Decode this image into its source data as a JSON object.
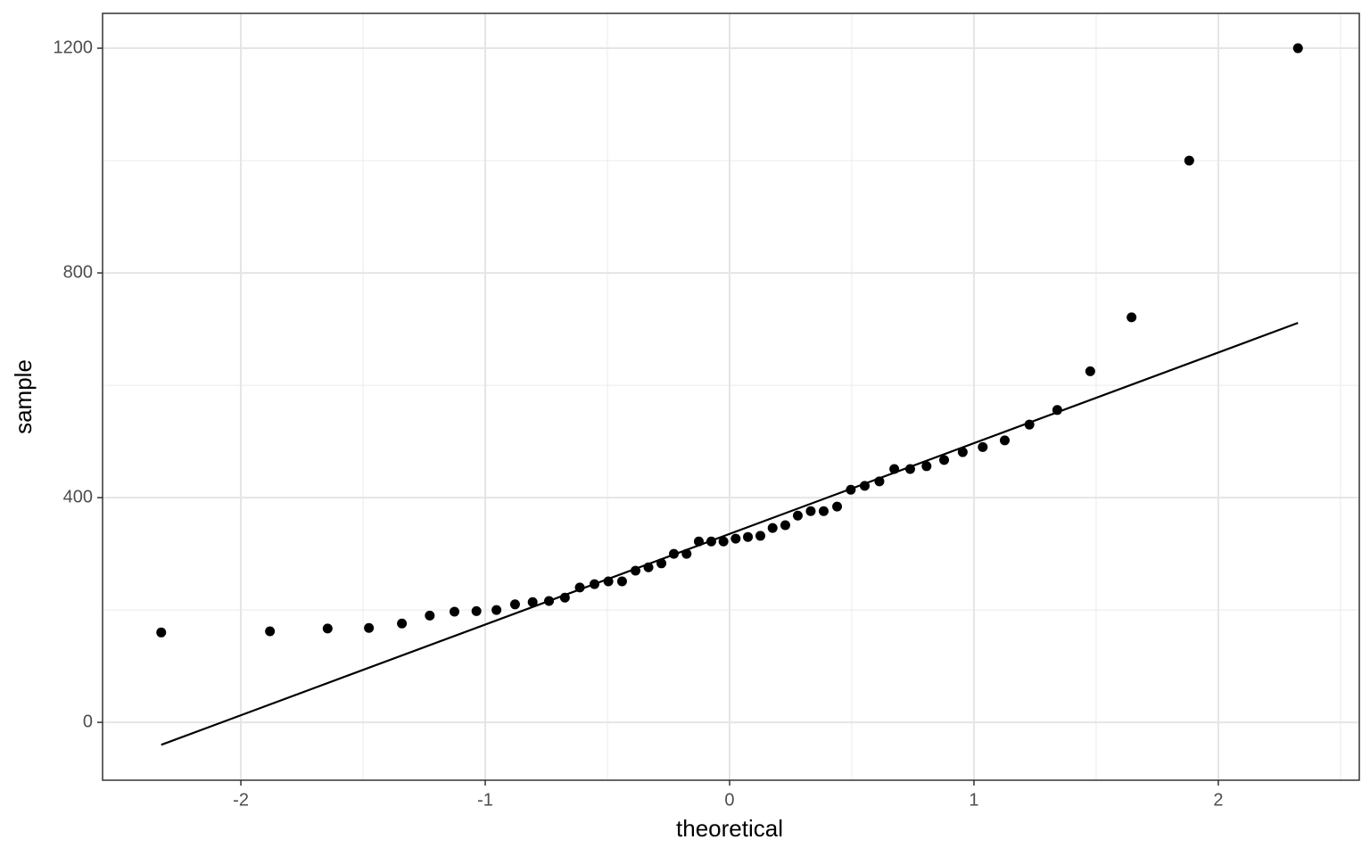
{
  "chart_data": {
    "type": "scatter",
    "x_label": "theoretical",
    "y_label": "sample",
    "x": [
      -2.326,
      -1.881,
      -1.645,
      -1.476,
      -1.341,
      -1.227,
      -1.126,
      -1.036,
      -0.954,
      -0.878,
      -0.806,
      -0.739,
      -0.674,
      -0.613,
      -0.553,
      -0.496,
      -0.44,
      -0.385,
      -0.332,
      -0.279,
      -0.228,
      -0.176,
      -0.126,
      -0.075,
      -0.025,
      0.025,
      0.075,
      0.126,
      0.176,
      0.228,
      0.279,
      0.332,
      0.385,
      0.44,
      0.496,
      0.553,
      0.613,
      0.674,
      0.739,
      0.806,
      0.878,
      0.954,
      1.036,
      1.126,
      1.227,
      1.341,
      1.476,
      1.645,
      1.881,
      2.326
    ],
    "series": [
      {
        "color": "#000000",
        "values": [
          160,
          162,
          167,
          168,
          176,
          190,
          197,
          198,
          200,
          210,
          214,
          216,
          222,
          240,
          246,
          251,
          251,
          270,
          276,
          283,
          300,
          300,
          322,
          322,
          322,
          327,
          330,
          332,
          346,
          351,
          368,
          376,
          376,
          384,
          414,
          421,
          429,
          451,
          451,
          456,
          467,
          481,
          490,
          502,
          530,
          556,
          625,
          721,
          1000,
          1200
        ]
      }
    ],
    "reference_line": {
      "color": "#000000",
      "x": [
        -2.326,
        2.326
      ],
      "y": [
        -40,
        711
      ]
    },
    "xlim": [
      -2.566,
      2.577
    ],
    "ylim": [
      -103,
      1262
    ],
    "xticks": [
      -2,
      -1,
      0,
      1,
      2
    ],
    "yticks": [
      0,
      400,
      800,
      1200
    ],
    "minor_xticks": [
      -1.5,
      -0.5,
      0.5,
      1.5,
      2.5
    ],
    "minor_yticks": [
      200,
      600,
      1000
    ],
    "grid": true
  }
}
